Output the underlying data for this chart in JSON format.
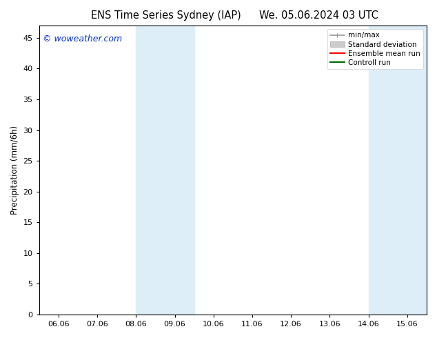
{
  "title_left": "ENS Time Series Sydney (IAP)",
  "title_right": "We. 05.06.2024 03 UTC",
  "ylabel": "Precipitation (mm/6h)",
  "watermark": "© woweather.com",
  "x_ticks": [
    "06.06",
    "07.06",
    "08.06",
    "09.06",
    "10.06",
    "11.06",
    "12.06",
    "13.06",
    "14.06",
    "15.06"
  ],
  "x_tick_positions": [
    0,
    1,
    2,
    3,
    4,
    5,
    6,
    7,
    8,
    9
  ],
  "xlim": [
    -0.5,
    9.5
  ],
  "ylim": [
    0,
    47
  ],
  "yticks": [
    0,
    5,
    10,
    15,
    20,
    25,
    30,
    35,
    40,
    45
  ],
  "shade_regions": [
    {
      "x_start": 2.0,
      "x_end": 3.5,
      "color": "#ddeef9"
    },
    {
      "x_start": 8.0,
      "x_end": 9.5,
      "color": "#ddeef9"
    }
  ],
  "legend_entries": [
    {
      "label": "min/max",
      "color": "#999999",
      "type": "line"
    },
    {
      "label": "Standard deviation",
      "color": "#cccccc",
      "type": "patch"
    },
    {
      "label": "Ensemble mean run",
      "color": "#ff0000",
      "type": "line"
    },
    {
      "label": "Controll run",
      "color": "#006600",
      "type": "line"
    }
  ],
  "bg_color": "#ffffff",
  "watermark_color": "#0033cc",
  "title_fontsize": 10.5,
  "tick_fontsize": 8,
  "ylabel_fontsize": 8.5,
  "legend_fontsize": 7.5,
  "watermark_fontsize": 9
}
